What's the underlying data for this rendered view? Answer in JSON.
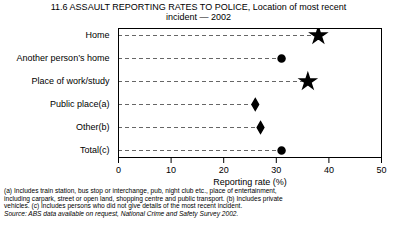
{
  "chart_data": {
    "type": "dot",
    "orientation": "horizontal",
    "title": "11.6   ASSAULT REPORTING RATES TO POLICE, Location of most recent",
    "subtitle": "incident — 2002",
    "categories": [
      "Home",
      "Another person’s home",
      "Place of work/study",
      "Public place(a)",
      "Other(b)",
      "Total(c)"
    ],
    "values": [
      38,
      31,
      36,
      26,
      27,
      31
    ],
    "markers": [
      "star",
      "circle",
      "star",
      "diamond",
      "diamond",
      "circle"
    ],
    "color": "black",
    "line_style": "dashed",
    "xlabel": "Reporting rate (%)",
    "xlim": [
      0,
      50
    ],
    "xticks": [
      0,
      10,
      20,
      30,
      40,
      50
    ],
    "grid": false,
    "annotations": [
      "(a) Includes train station, bus stop or interchange, pub, night club etc., place of entertainment,",
      "including carpark, street or open land, shopping centre and public transport.  (b) Includes private",
      "vehicles.  (c) Includes persons who did not give details of the most recent incident.",
      "Source:  ABS data available on request, National Crime and Safety Survey 2002."
    ]
  }
}
